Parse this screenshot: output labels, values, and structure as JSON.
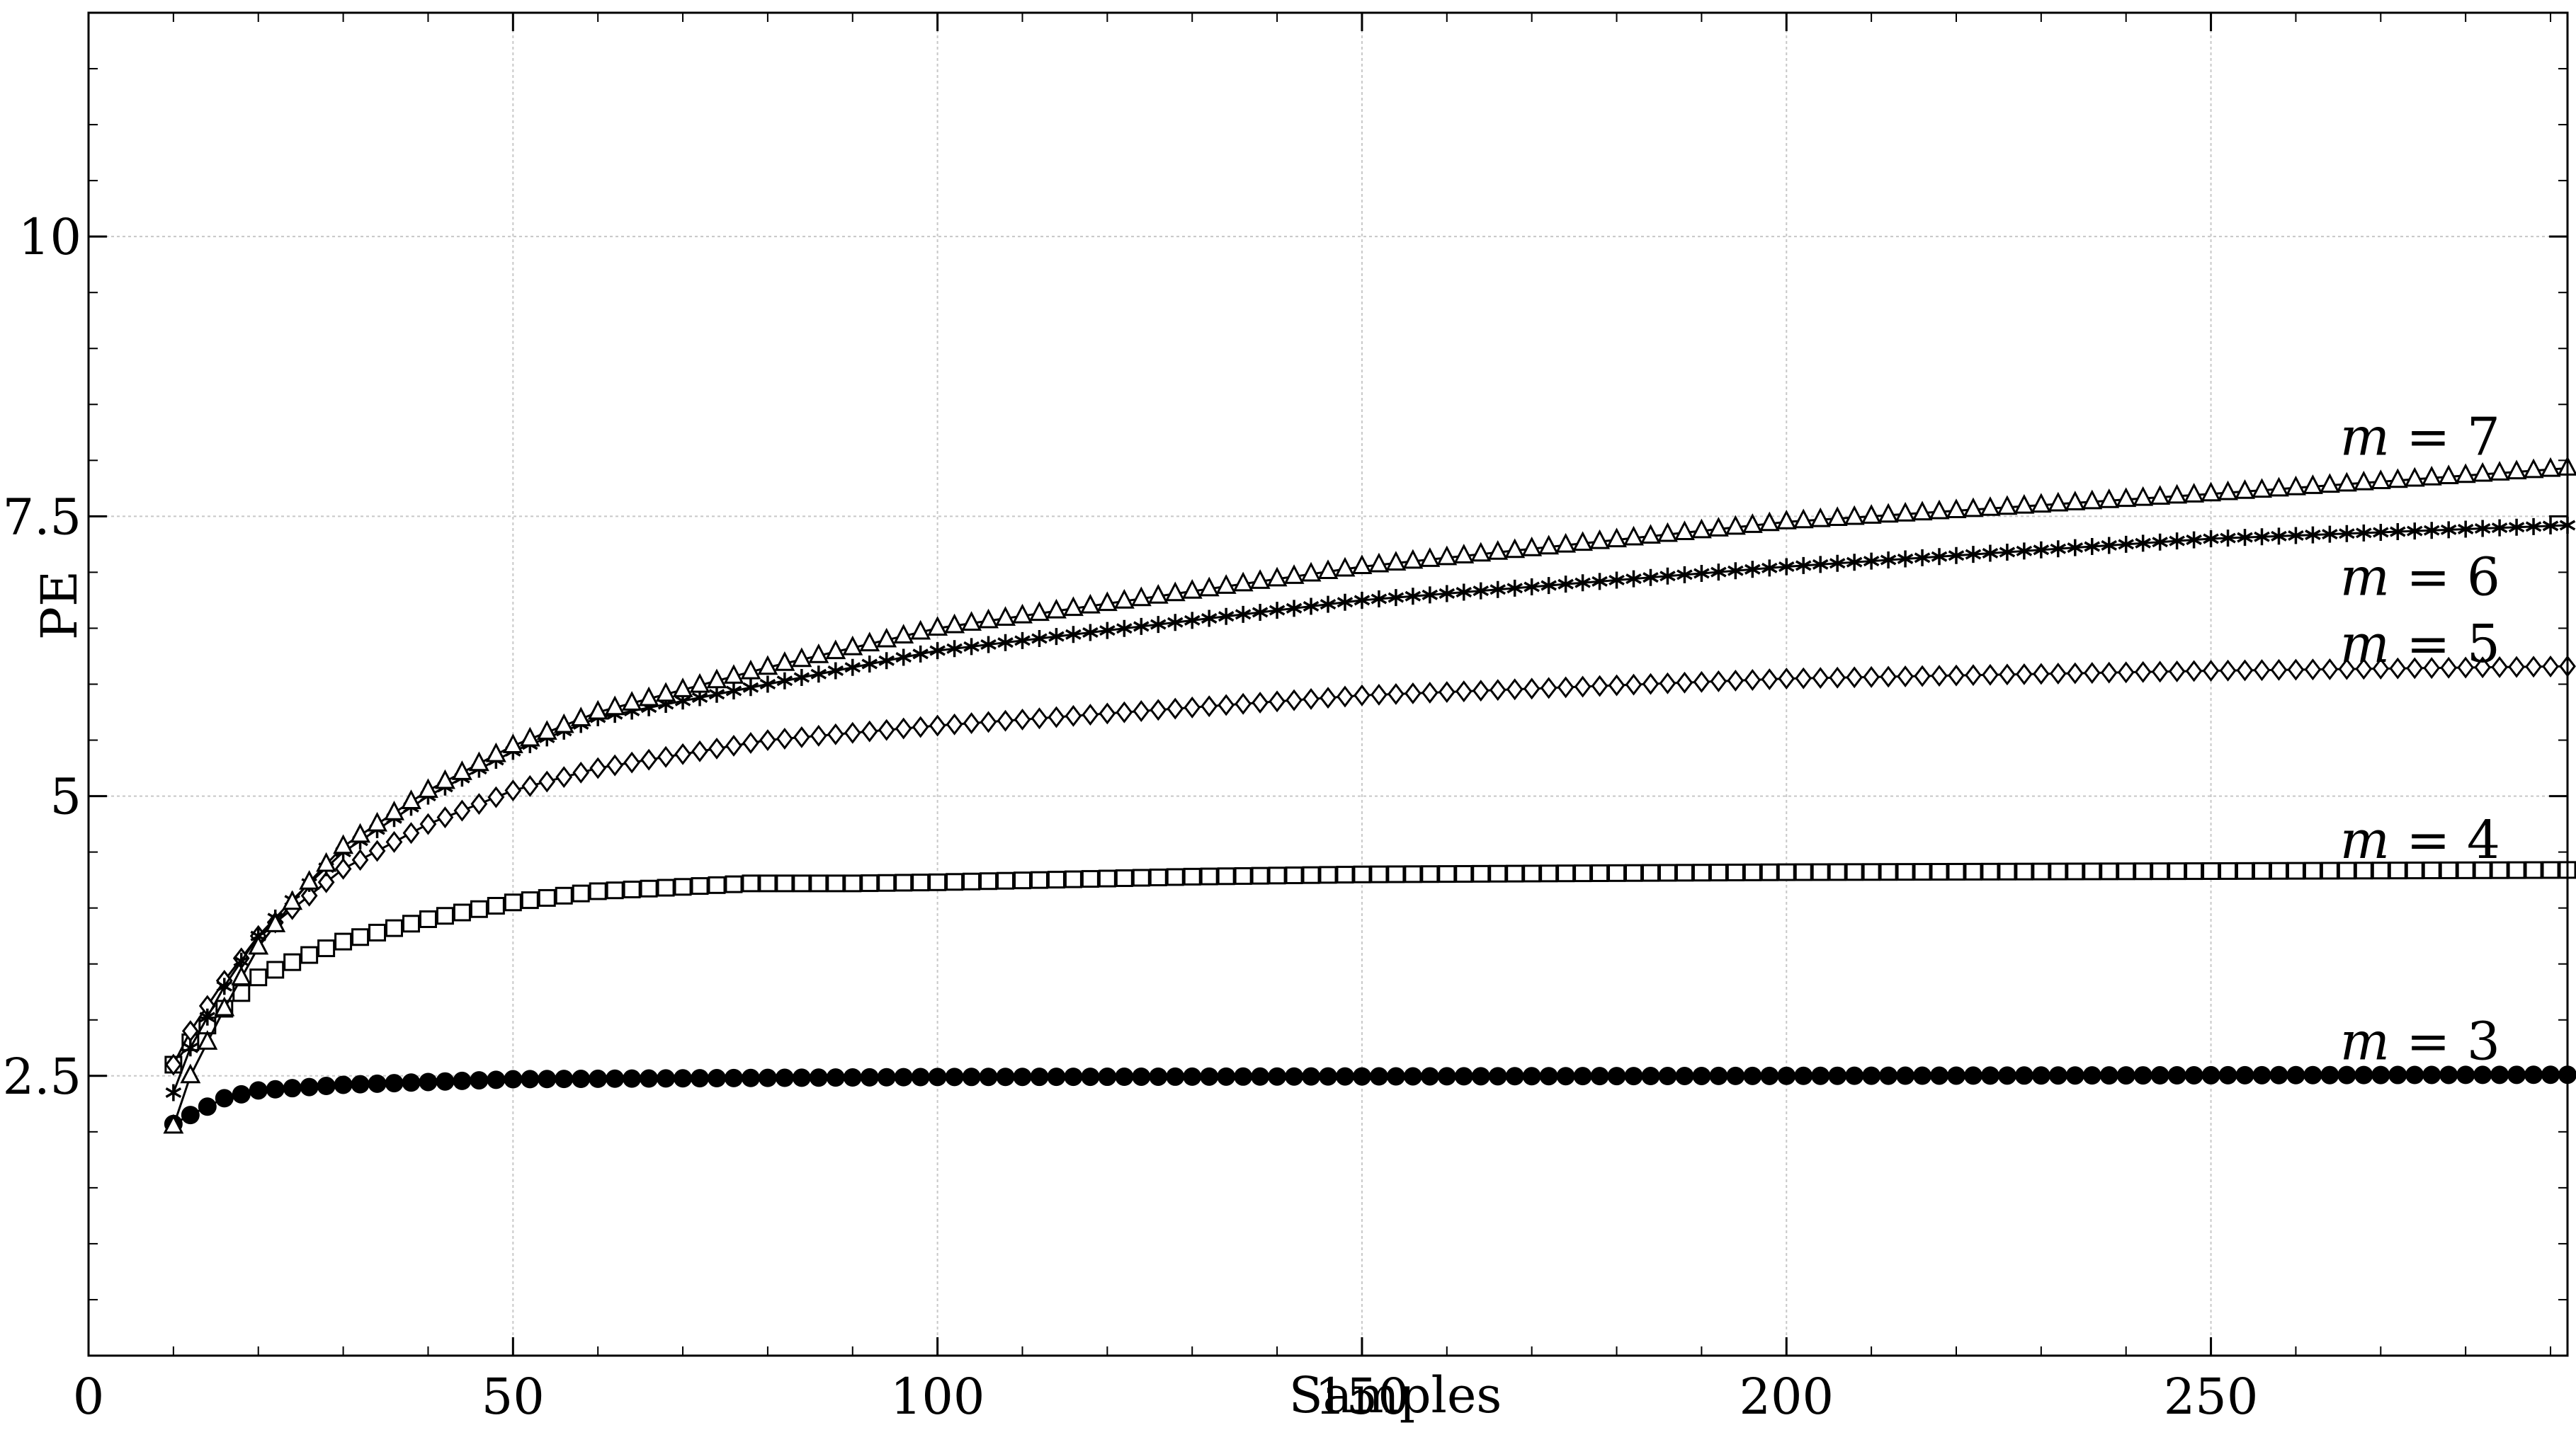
{
  "chart_data": {
    "type": "line",
    "title": "",
    "xlabel": "Samples",
    "ylabel": "PE",
    "xlim": [
      0,
      292
    ],
    "ylim": [
      0,
      12
    ],
    "x_ticks": [
      0,
      50,
      100,
      150,
      200,
      250
    ],
    "x_tick_labels": [
      "0",
      "50",
      "100",
      "150",
      "200",
      "250"
    ],
    "y_ticks": [
      2.5,
      5,
      7.5,
      10
    ],
    "y_tick_labels": [
      "2.5",
      "5",
      "7.5",
      "10"
    ],
    "grid": true,
    "legend": "none",
    "x_start": 10,
    "x_end": 292,
    "x_step": 2,
    "series": [
      {
        "name": "m = 3",
        "marker": "filled-circle",
        "label_y": 2.8,
        "points": [
          [
            10,
            2.07
          ],
          [
            12,
            2.15
          ],
          [
            16,
            2.3
          ],
          [
            20,
            2.37
          ],
          [
            30,
            2.42
          ],
          [
            50,
            2.47
          ],
          [
            100,
            2.49
          ],
          [
            200,
            2.5
          ],
          [
            292,
            2.51
          ]
        ]
      },
      {
        "name": "m = 4",
        "marker": "open-square",
        "label_y": 4.6,
        "points": [
          [
            10,
            2.6
          ],
          [
            12,
            2.8
          ],
          [
            16,
            3.1
          ],
          [
            20,
            3.38
          ],
          [
            25,
            3.55
          ],
          [
            30,
            3.7
          ],
          [
            40,
            3.9
          ],
          [
            50,
            4.05
          ],
          [
            60,
            4.15
          ],
          [
            78,
            4.22
          ],
          [
            90,
            4.22
          ],
          [
            100,
            4.23
          ],
          [
            130,
            4.28
          ],
          [
            150,
            4.3
          ],
          [
            200,
            4.32
          ],
          [
            250,
            4.33
          ],
          [
            292,
            4.34
          ]
        ]
      },
      {
        "name": "m = 5",
        "marker": "open-diamond",
        "label_y": 6.35,
        "points": [
          [
            10,
            2.6
          ],
          [
            12,
            2.9
          ],
          [
            16,
            3.35
          ],
          [
            20,
            3.75
          ],
          [
            25,
            4.05
          ],
          [
            30,
            4.35
          ],
          [
            40,
            4.75
          ],
          [
            50,
            5.05
          ],
          [
            60,
            5.25
          ],
          [
            80,
            5.5
          ],
          [
            100,
            5.63
          ],
          [
            150,
            5.9
          ],
          [
            200,
            6.05
          ],
          [
            250,
            6.12
          ],
          [
            292,
            6.16
          ]
        ]
      },
      {
        "name": "m = 6",
        "marker": "asterisk",
        "label_y": 6.95,
        "points": [
          [
            10,
            2.35
          ],
          [
            12,
            2.75
          ],
          [
            16,
            3.3
          ],
          [
            20,
            3.75
          ],
          [
            25,
            4.15
          ],
          [
            30,
            4.5
          ],
          [
            40,
            5.0
          ],
          [
            50,
            5.4
          ],
          [
            60,
            5.7
          ],
          [
            80,
            6.0
          ],
          [
            100,
            6.3
          ],
          [
            150,
            6.75
          ],
          [
            200,
            7.05
          ],
          [
            250,
            7.3
          ],
          [
            292,
            7.42
          ]
        ]
      },
      {
        "name": "m = 7",
        "marker": "open-triangle",
        "label_y": 8.2,
        "points": [
          [
            10,
            2.05
          ],
          [
            12,
            2.5
          ],
          [
            16,
            3.1
          ],
          [
            20,
            3.65
          ],
          [
            25,
            4.15
          ],
          [
            30,
            4.55
          ],
          [
            40,
            5.05
          ],
          [
            50,
            5.45
          ],
          [
            60,
            5.75
          ],
          [
            80,
            6.15
          ],
          [
            100,
            6.5
          ],
          [
            150,
            7.05
          ],
          [
            200,
            7.45
          ],
          [
            250,
            7.7
          ],
          [
            292,
            7.93
          ]
        ]
      }
    ]
  }
}
